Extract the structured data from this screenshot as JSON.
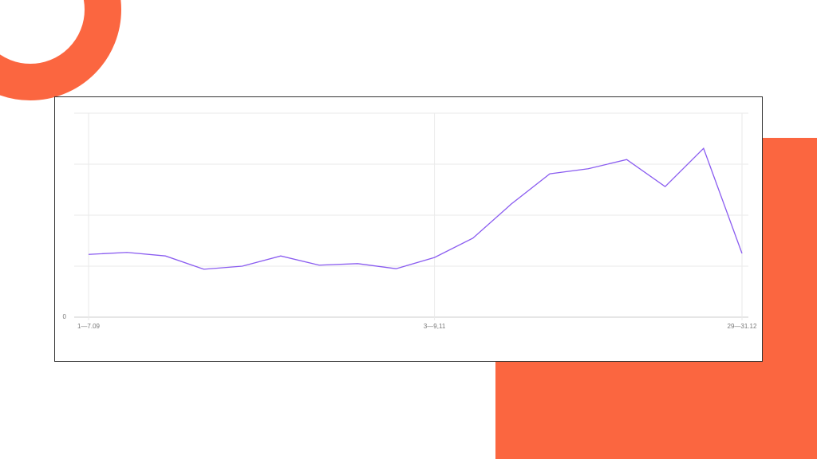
{
  "chart_data": {
    "type": "line",
    "categories": [
      "1—7.09",
      null,
      null,
      null,
      null,
      null,
      null,
      null,
      null,
      "3—9,11",
      null,
      null,
      null,
      null,
      null,
      null,
      null,
      "29—31.12"
    ],
    "series": [
      {
        "color": "#8a5cf0",
        "values": [
          1.23,
          1.27,
          1.2,
          0.94,
          1.0,
          1.2,
          1.02,
          1.05,
          0.95,
          1.17,
          1.55,
          2.22,
          2.81,
          2.91,
          3.09,
          2.56,
          3.31,
          1.25
        ]
      }
    ],
    "ylim": [
      0,
      4
    ],
    "yticks": [
      0,
      {
        "value": 1,
        "label": null
      },
      {
        "value": 2,
        "label": null
      },
      {
        "value": 3,
        "label": null
      },
      {
        "value": 4,
        "label": null
      }
    ],
    "grid": true
  }
}
